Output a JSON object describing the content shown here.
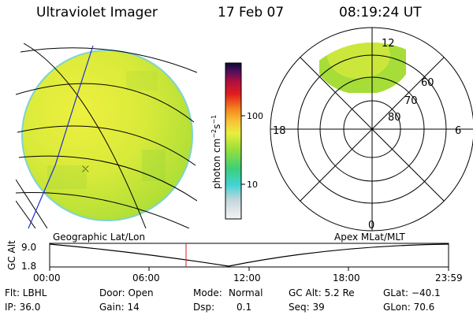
{
  "header": {
    "title": "Ultraviolet Imager",
    "date": "17 Feb 07",
    "time": "08:19:24 UT"
  },
  "colorbar": {
    "unit": "photon cm",
    "unit_sup1": "−2",
    "unit_mid": "s",
    "unit_sup2": "−1",
    "ticks": [
      "100",
      "10"
    ]
  },
  "polar": {
    "mlt_labels": [
      "12",
      "18",
      "6",
      "0"
    ],
    "lat_labels": [
      "60",
      "70",
      "80"
    ]
  },
  "timeline": {
    "left_label": "Geographic Lat/Lon",
    "right_label": "Apex MLat/MLT",
    "y_axis_label": "GC Alt",
    "y_ticks": [
      "9.0",
      "1.8"
    ],
    "x_ticks": [
      "00:00",
      "06:00",
      "12:00",
      "18:00",
      "23:59"
    ]
  },
  "status": {
    "flt": "Flt: LBHL",
    "ip": "IP: 36.0",
    "door": "Door: Open",
    "gain": "Gain: 14",
    "mode_label": "Mode:",
    "mode_value": "Normal",
    "dsp_label": "Dsp:",
    "dsp_value": "0.1",
    "gcalt": "GC Alt: 5.2 Re",
    "seq": "Seq: 39",
    "glat": "GLat: −40.1",
    "glon": "GLon: 70.6"
  },
  "colors": {
    "image_green": "#b7e23a",
    "image_yellow": "#e8ec3c",
    "blue_track": "#1d2fd8",
    "red_marker": "#d02020"
  }
}
